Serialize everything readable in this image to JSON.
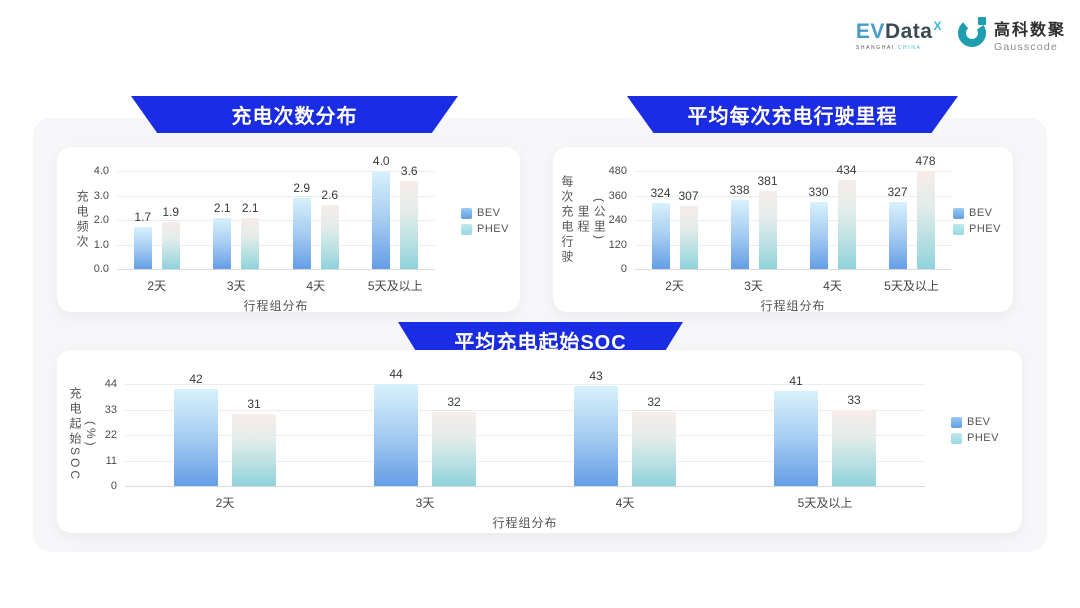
{
  "header": {
    "evdata": {
      "ev": "EV",
      "data": "Data",
      "sup": "X",
      "tagline1": "SHANGHAI",
      "tagline2": "CHINA"
    },
    "gausscode": {
      "cn": "高科数聚",
      "en": "Gausscode"
    }
  },
  "colors": {
    "banner_blue": "#1b2de4",
    "bev_gradient": [
      "#d8f1fc",
      "#a6ccf1",
      "#649ee6"
    ],
    "phev_gradient": [
      "#f7ece9",
      "#e3ecea",
      "#b8e0e2",
      "#8fd2dc"
    ],
    "bev_legend_top": "#9ccaf2",
    "bev_legend_bottom": "#5f9de4",
    "phev_legend_top": "#bfe8ee",
    "phev_legend_bottom": "#99d8e2",
    "gridline": "#ececef",
    "axis_line": "#d9d9de",
    "gausscode_teal": "#1d9db0"
  },
  "legend": {
    "items": [
      "BEV",
      "PHEV"
    ]
  },
  "chart_data": [
    {
      "type": "bar",
      "title": "充电次数分布",
      "ylabel": "充电频次",
      "xlabel": "行程组分布",
      "categories": [
        "2天",
        "3天",
        "4天",
        "5天及以上"
      ],
      "yticks": [
        "0.0",
        "1.0",
        "2.0",
        "3.0",
        "4.0"
      ],
      "ylim": [
        0,
        4
      ],
      "grid": true,
      "legend_position": "right",
      "series": [
        {
          "name": "BEV",
          "values": [
            1.7,
            2.1,
            2.9,
            4.0
          ],
          "labels": [
            "1.7",
            "2.1",
            "2.9",
            "4.0"
          ]
        },
        {
          "name": "PHEV",
          "values": [
            1.9,
            2.1,
            2.6,
            3.6
          ],
          "labels": [
            "1.9",
            "2.1",
            "2.6",
            "3.6"
          ]
        }
      ]
    },
    {
      "type": "bar",
      "title": "平均每次充电行驶里程",
      "ylabel": "每次充电行驶里程\n(公里)",
      "xlabel": "行程组分布",
      "categories": [
        "2天",
        "3天",
        "4天",
        "5天及以上"
      ],
      "yticks": [
        "0",
        "120",
        "240",
        "360",
        "480"
      ],
      "ylim": [
        0,
        480
      ],
      "grid": true,
      "legend_position": "right",
      "series": [
        {
          "name": "BEV",
          "values": [
            324,
            338,
            330,
            327
          ],
          "labels": [
            "324",
            "338",
            "330",
            "327"
          ]
        },
        {
          "name": "PHEV",
          "values": [
            307,
            381,
            434,
            478
          ],
          "labels": [
            "307",
            "381",
            "434",
            "478"
          ]
        }
      ]
    },
    {
      "type": "bar",
      "title": "平均充电起始SOC",
      "ylabel": "充电起始SOC\n(%)",
      "xlabel": "行程组分布",
      "categories": [
        "2天",
        "3天",
        "4天",
        "5天及以上"
      ],
      "yticks": [
        "0",
        "11",
        "22",
        "33",
        "44"
      ],
      "ylim": [
        0,
        44
      ],
      "grid": true,
      "legend_position": "right",
      "series": [
        {
          "name": "BEV",
          "values": [
            42,
            44,
            43,
            41
          ],
          "labels": [
            "42",
            "44",
            "43",
            "41"
          ]
        },
        {
          "name": "PHEV",
          "values": [
            31,
            32,
            32,
            33
          ],
          "labels": [
            "31",
            "32",
            "32",
            "33"
          ]
        }
      ]
    }
  ]
}
